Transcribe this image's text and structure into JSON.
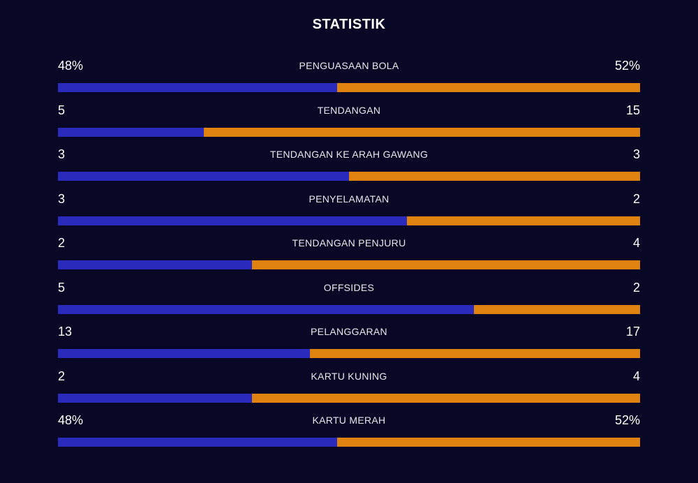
{
  "title": "STATISTIK",
  "colors": {
    "background": "#080726",
    "home": "#2a2bbd",
    "away": "#e0820f"
  },
  "stats": [
    {
      "label": "PENGUASAAN BOLA",
      "home": "48%",
      "away": "52%",
      "home_share": 0.48
    },
    {
      "label": "TENDANGAN",
      "home": "5",
      "away": "15",
      "home_share": 0.25
    },
    {
      "label": "TENDANGAN KE ARAH GAWANG",
      "home": "3",
      "away": "3",
      "home_share": 0.5
    },
    {
      "label": "PENYELAMATAN",
      "home": "3",
      "away": "2",
      "home_share": 0.6
    },
    {
      "label": "TENDANGAN PENJURU",
      "home": "2",
      "away": "4",
      "home_share": 0.3333
    },
    {
      "label": "OFFSIDES",
      "home": "5",
      "away": "2",
      "home_share": 0.7143
    },
    {
      "label": "PELANGGARAN",
      "home": "13",
      "away": "17",
      "home_share": 0.4333
    },
    {
      "label": "KARTU KUNING",
      "home": "2",
      "away": "4",
      "home_share": 0.3333
    },
    {
      "label": "KARTU MERAH",
      "home": "48%",
      "away": "52%",
      "home_share": 0.48
    }
  ]
}
